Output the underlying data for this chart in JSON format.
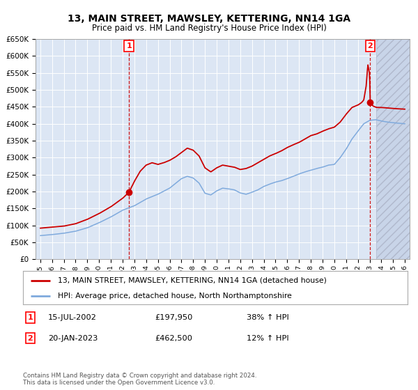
{
  "title": "13, MAIN STREET, MAWSLEY, KETTERING, NN14 1GA",
  "subtitle": "Price paid vs. HM Land Registry's House Price Index (HPI)",
  "legend_line1": "13, MAIN STREET, MAWSLEY, KETTERING, NN14 1GA (detached house)",
  "legend_line2": "HPI: Average price, detached house, North Northamptonshire",
  "annotation1_label": "1",
  "annotation1_date": "15-JUL-2002",
  "annotation1_price": "£197,950",
  "annotation1_hpi": "38% ↑ HPI",
  "annotation2_label": "2",
  "annotation2_date": "20-JAN-2023",
  "annotation2_price": "£462,500",
  "annotation2_hpi": "12% ↑ HPI",
  "footer": "Contains HM Land Registry data © Crown copyright and database right 2024.\nThis data is licensed under the Open Government Licence v3.0.",
  "ylim": [
    0,
    650000
  ],
  "yticks": [
    0,
    50000,
    100000,
    150000,
    200000,
    250000,
    300000,
    350000,
    400000,
    450000,
    500000,
    550000,
    600000,
    650000
  ],
  "ytick_labels": [
    "£0",
    "£50K",
    "£100K",
    "£150K",
    "£200K",
    "£250K",
    "£300K",
    "£350K",
    "£400K",
    "£450K",
    "£500K",
    "£550K",
    "£600K",
    "£650K"
  ],
  "xlim_start": 1994.6,
  "xlim_end": 2026.4,
  "xticks": [
    1995,
    1996,
    1997,
    1998,
    1999,
    2000,
    2001,
    2002,
    2003,
    2004,
    2005,
    2006,
    2007,
    2008,
    2009,
    2010,
    2011,
    2012,
    2013,
    2014,
    2015,
    2016,
    2017,
    2018,
    2019,
    2020,
    2021,
    2022,
    2023,
    2024,
    2025,
    2026
  ],
  "background_color": "#dce6f4",
  "hatch_start_x": 2023.58,
  "line_red": "#cc0000",
  "line_blue": "#7faadd",
  "marker_color": "#cc0000",
  "transaction1_x": 2002.54,
  "transaction1_y": 197950,
  "transaction2_x": 2023.05,
  "transaction2_y": 462500
}
